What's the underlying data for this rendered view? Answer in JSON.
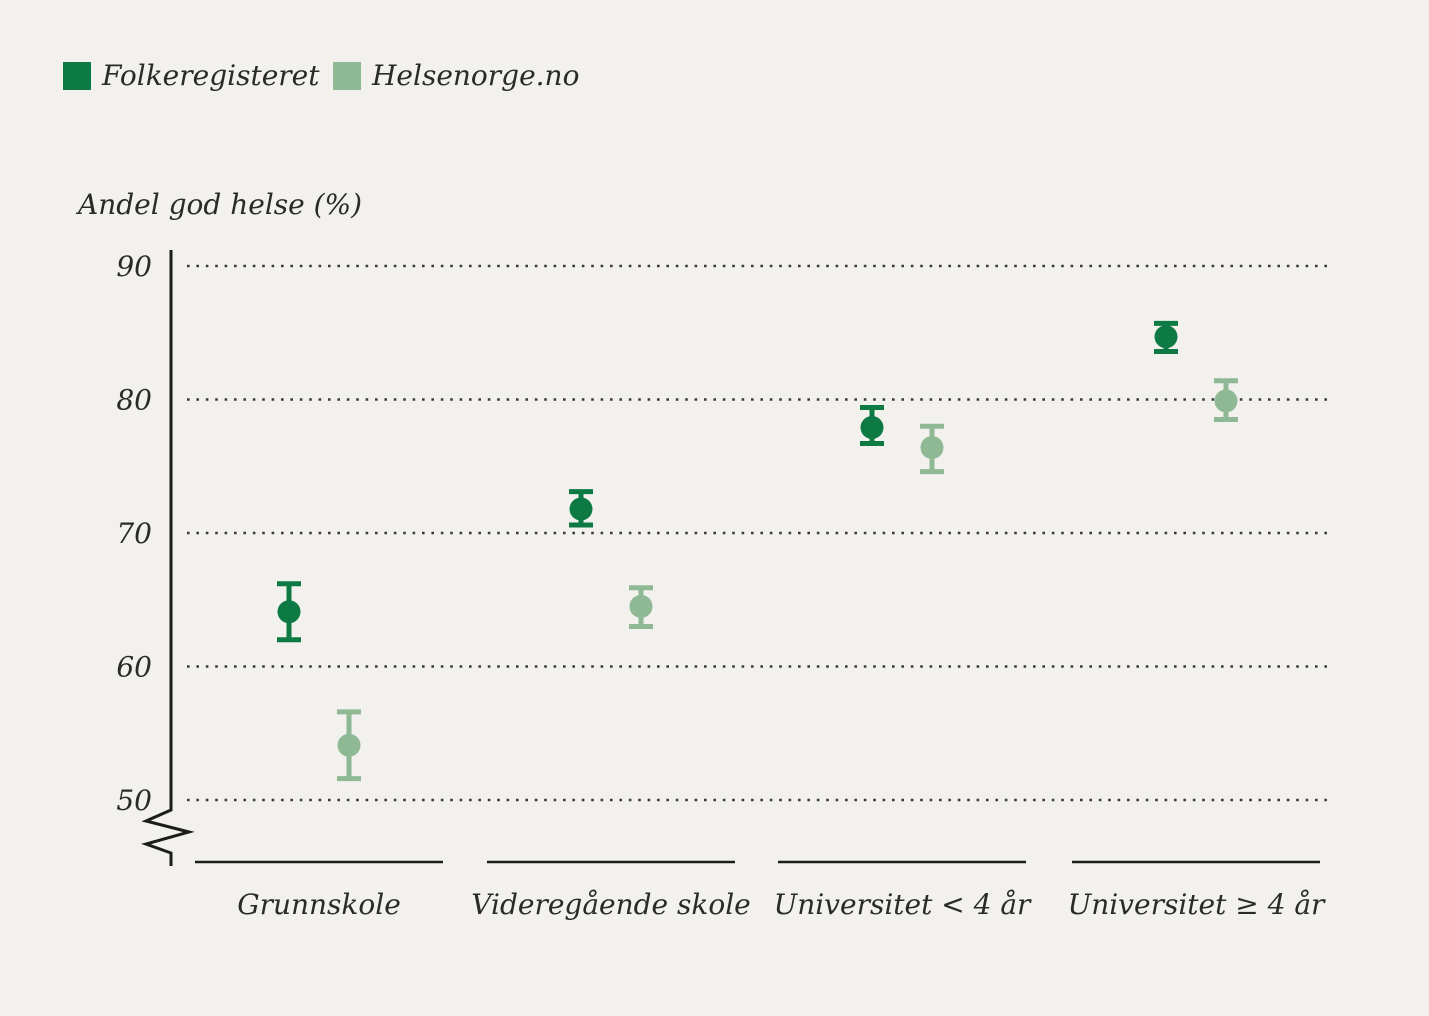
{
  "legend": {
    "items": [
      {
        "label": "Folkeregisteret",
        "color": "#0d7a43"
      },
      {
        "label": "Helsenorge.no",
        "color": "#8fb894"
      }
    ]
  },
  "chart_data": {
    "type": "scatter",
    "title": "",
    "ylabel": "Andel god helse (%)",
    "xlabel": "",
    "categories": [
      "Grunnskole",
      "Videregående skole",
      "Universitet < 4 år",
      "Universitet ≥ 4 år"
    ],
    "yticks": [
      90,
      80,
      70,
      60,
      50
    ],
    "ylim": [
      50,
      90
    ],
    "axis_break_below": 50,
    "grid": "horizontal-dotted",
    "legend_position": "top-left",
    "marker": "circle-with-error-bars",
    "series": [
      {
        "name": "Folkeregisteret",
        "color": "#0d7a43",
        "values": [
          64.1,
          71.8,
          77.9,
          84.7
        ],
        "ci_low": [
          62.0,
          70.6,
          76.7,
          83.6
        ],
        "ci_high": [
          66.2,
          73.1,
          79.4,
          85.7
        ]
      },
      {
        "name": "Helsenorge.no",
        "color": "#8fb894",
        "values": [
          54.1,
          64.5,
          76.4,
          79.9
        ],
        "ci_low": [
          51.6,
          63.0,
          74.6,
          78.5
        ],
        "ci_high": [
          56.6,
          65.9,
          78.0,
          81.4
        ]
      }
    ]
  },
  "colors": {
    "background": "#f2f1ee",
    "text": "#2a2a28",
    "grid": "#3a3a38",
    "axis": "#1c1c1a"
  }
}
